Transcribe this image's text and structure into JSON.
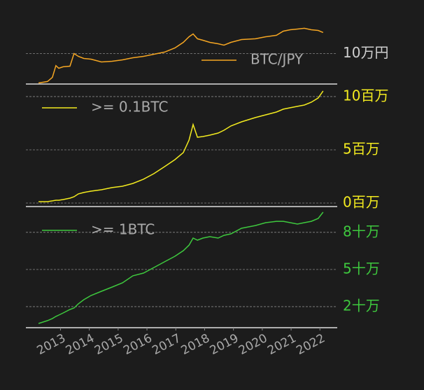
{
  "chart_data": [
    {
      "type": "line",
      "log_scale": true,
      "legend": "upper right",
      "grid": true,
      "x": [
        2012.24,
        2012.55,
        2012.72,
        2012.84,
        2012.94,
        2013.09,
        2013.33,
        2013.47,
        2013.62,
        2013.81,
        2014.06,
        2014.42,
        2014.79,
        2015.15,
        2015.51,
        2015.88,
        2016.24,
        2016.61,
        2016.97,
        2017.26,
        2017.46,
        2017.6,
        2017.75,
        2017.94,
        2018.18,
        2018.47,
        2018.67,
        2018.91,
        2019.28,
        2019.76,
        2020.12,
        2020.49,
        2020.73,
        2020.97,
        2021.22,
        2021.46,
        2021.7,
        2021.94,
        2022.11
      ],
      "series": [
        {
          "name": "BTC/JPY",
          "color": "#f5a623",
          "values": [
            830,
            1050,
            2100,
            14000,
            9100,
            11500,
            12800,
            100000,
            63000,
            45000,
            40000,
            25500,
            28600,
            35800,
            50400,
            63400,
            89200,
            126000,
            249000,
            619000,
            1540000,
            2440000,
            1100000,
            873000,
            619000,
            493000,
            392000,
            619000,
            978000,
            1100000,
            1540000,
            1950000,
            3840000,
            4830000,
            5420000,
            6080000,
            4830000,
            4300000,
            3070000
          ]
        }
      ],
      "xlim": [
        2011.8,
        2022.6
      ],
      "ylim": [
        700,
        20000000
      ],
      "yticks": [
        {
          "value": 100000,
          "label": "10万円"
        }
      ]
    },
    {
      "type": "line",
      "legend": "upper left",
      "grid": true,
      "x": [
        2012.24,
        2012.55,
        2012.72,
        2012.84,
        2012.94,
        2013.09,
        2013.33,
        2013.47,
        2013.62,
        2013.81,
        2014.06,
        2014.42,
        2014.79,
        2015.15,
        2015.51,
        2015.88,
        2016.24,
        2016.61,
        2016.97,
        2017.26,
        2017.46,
        2017.6,
        2017.75,
        2017.94,
        2018.18,
        2018.47,
        2018.67,
        2018.91,
        2019.28,
        2019.76,
        2020.12,
        2020.49,
        2020.73,
        2020.97,
        2021.22,
        2021.46,
        2021.7,
        2021.94,
        2022.11
      ],
      "series": [
        {
          "name": ">= 0.1BTC",
          "color": "#f2ea1f",
          "values": [
            130000,
            130000,
            200000,
            260000,
            260000,
            330000,
            460000,
            590000,
            860000,
            990000,
            1120000,
            1250000,
            1450000,
            1580000,
            1840000,
            2240000,
            2760000,
            3420000,
            4080000,
            4740000,
            5920000,
            7370000,
            6180000,
            6250000,
            6380000,
            6580000,
            6840000,
            7240000,
            7630000,
            8030000,
            8290000,
            8550000,
            8820000,
            8950000,
            9080000,
            9210000,
            9470000,
            9870000,
            10530000
          ]
        }
      ],
      "xlim": [
        2011.8,
        2022.6
      ],
      "ylim": [
        -330000,
        11050000
      ],
      "yticks": [
        {
          "value": 0,
          "label": "0百万"
        },
        {
          "value": 5000000,
          "label": "5百万"
        },
        {
          "value": 10000000,
          "label": "10百万"
        }
      ]
    },
    {
      "type": "line",
      "legend": "upper left",
      "grid": true,
      "x": [
        2012.24,
        2012.55,
        2012.72,
        2012.84,
        2012.94,
        2013.09,
        2013.33,
        2013.47,
        2013.62,
        2013.81,
        2014.06,
        2014.42,
        2014.79,
        2015.15,
        2015.51,
        2015.88,
        2016.24,
        2016.61,
        2016.97,
        2017.26,
        2017.46,
        2017.6,
        2017.75,
        2017.94,
        2018.18,
        2018.47,
        2018.67,
        2018.91,
        2019.28,
        2019.76,
        2020.12,
        2020.49,
        2020.73,
        2020.97,
        2021.22,
        2021.46,
        2021.7,
        2021.94,
        2022.11
      ],
      "series": [
        {
          "name": ">= 1BTC",
          "color": "#3ec83e",
          "values": [
            64000,
            87000,
            104000,
            121000,
            132000,
            149000,
            177000,
            189000,
            223000,
            256000,
            290000,
            324000,
            358000,
            392000,
            449000,
            471000,
            516000,
            562000,
            607000,
            652000,
            697000,
            754000,
            737000,
            754000,
            765000,
            754000,
            776000,
            788000,
            833000,
            855000,
            878000,
            889000,
            889000,
            878000,
            867000,
            878000,
            889000,
            912000,
            963000
          ]
        }
      ],
      "xlim": [
        2011.8,
        2022.6
      ],
      "ylim": [
        30000,
        997000
      ],
      "yticks": [
        {
          "value": 200000,
          "label": "2十万"
        },
        {
          "value": 500000,
          "label": "5十万"
        },
        {
          "value": 800000,
          "label": "8十万"
        }
      ],
      "xticks": [
        2013,
        2014,
        2015,
        2016,
        2017,
        2018,
        2019,
        2020,
        2021,
        2022
      ]
    }
  ]
}
